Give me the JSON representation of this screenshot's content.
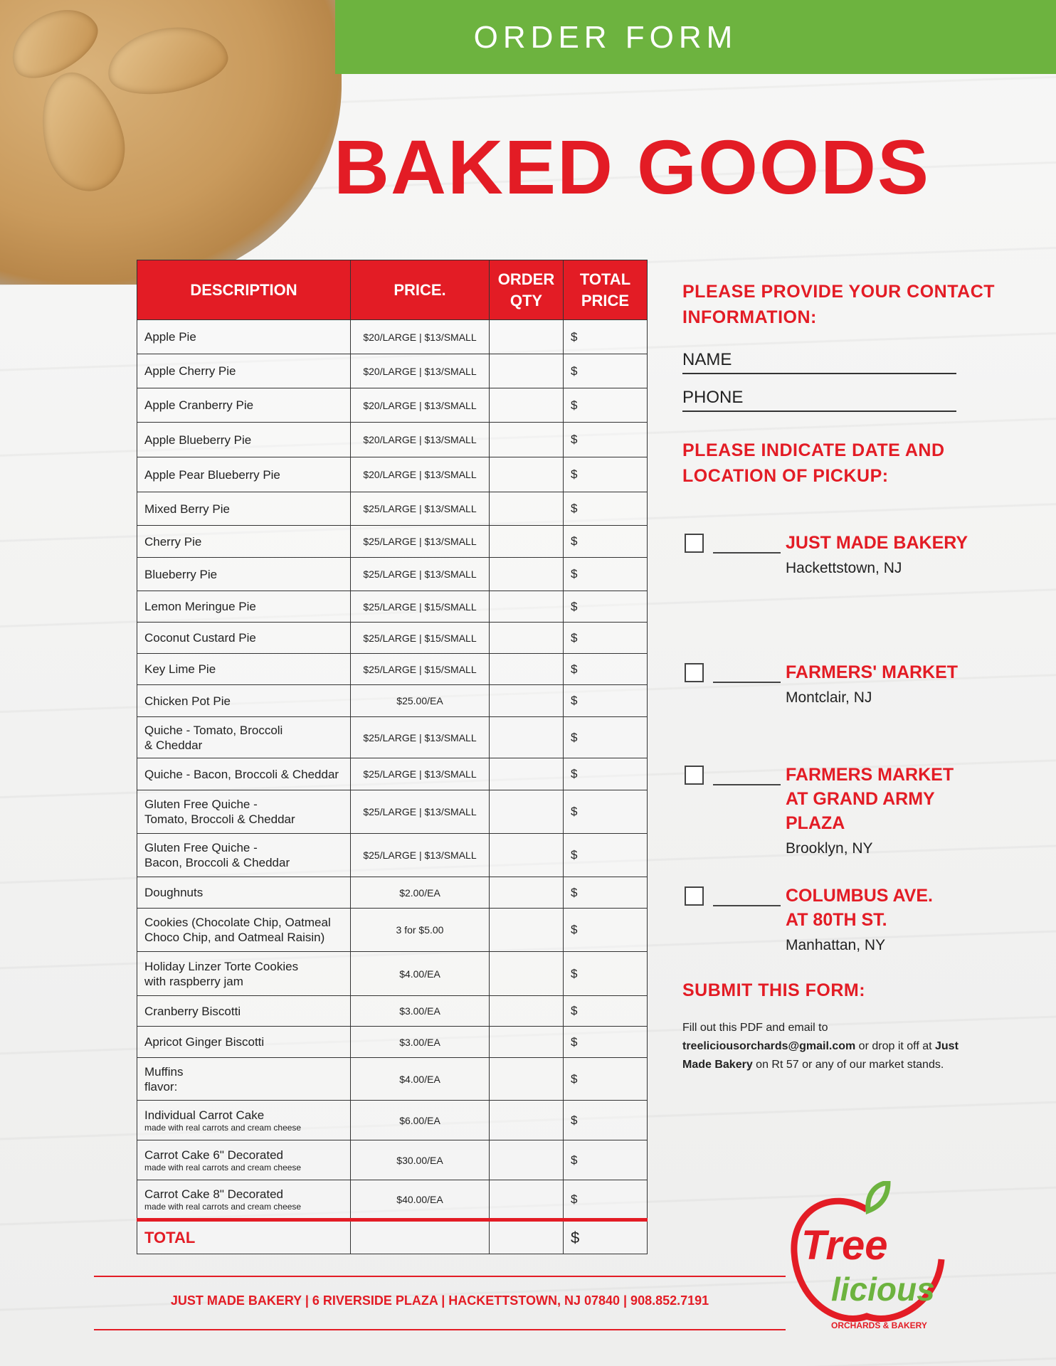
{
  "header": {
    "banner": "ORDER FORM",
    "title": "BAKED GOODS"
  },
  "colors": {
    "red": "#e31c25",
    "green": "#6db33f"
  },
  "table": {
    "columns": [
      "DESCRIPTION",
      "PRICE.",
      "ORDER QTY",
      "TOTAL PRICE"
    ],
    "rows": [
      {
        "desc": "Apple Pie",
        "price": "$20/LARGE | $13/SMALL",
        "total": "$"
      },
      {
        "desc": "Apple Cherry Pie",
        "price": "$20/LARGE | $13/SMALL",
        "total": "$"
      },
      {
        "desc": "Apple Cranberry Pie",
        "price": "$20/LARGE | $13/SMALL",
        "total": "$"
      },
      {
        "desc": "Apple Blueberry Pie",
        "price": "$20/LARGE | $13/SMALL",
        "total": "$"
      },
      {
        "desc": "Apple Pear Blueberry Pie",
        "price": "$20/LARGE | $13/SMALL",
        "total": "$"
      },
      {
        "desc": "Mixed Berry Pie",
        "price": "$25/LARGE | $13/SMALL",
        "total": "$"
      },
      {
        "desc": "Cherry Pie",
        "price": "$25/LARGE | $13/SMALL",
        "total": "$"
      },
      {
        "desc": "Blueberry Pie",
        "price": "$25/LARGE | $13/SMALL",
        "total": "$"
      },
      {
        "desc": "Lemon Meringue Pie",
        "price": "$25/LARGE | $15/SMALL",
        "total": "$"
      },
      {
        "desc": "Coconut Custard Pie",
        "price": "$25/LARGE | $15/SMALL",
        "total": "$"
      },
      {
        "desc": "Key Lime Pie",
        "price": "$25/LARGE | $15/SMALL",
        "total": "$"
      },
      {
        "desc": "Chicken Pot Pie",
        "price": "$25.00/EA",
        "total": "$"
      },
      {
        "desc": "Quiche - Tomato, Broccoli\n& Cheddar",
        "price": "$25/LARGE | $13/SMALL",
        "total": "$"
      },
      {
        "desc": "Quiche - Bacon, Broccoli & Cheddar",
        "price": "$25/LARGE | $13/SMALL",
        "total": "$"
      },
      {
        "desc": "Gluten Free Quiche -\nTomato, Broccoli & Cheddar",
        "price": "$25/LARGE | $13/SMALL",
        "total": "$"
      },
      {
        "desc": "Gluten Free Quiche -\nBacon, Broccoli & Cheddar",
        "price": "$25/LARGE | $13/SMALL",
        "total": "$"
      },
      {
        "desc": "Doughnuts",
        "price": "$2.00/EA",
        "total": "$"
      },
      {
        "desc": "Cookies (Chocolate Chip, Oatmeal\nChoco Chip, and Oatmeal Raisin)",
        "price": "3 for $5.00",
        "total": "$"
      },
      {
        "desc": "Holiday Linzer Torte Cookies\nwith raspberry jam",
        "price": "$4.00/EA",
        "total": "$"
      },
      {
        "desc": "Cranberry Biscotti",
        "price": "$3.00/EA",
        "total": "$"
      },
      {
        "desc": "Apricot Ginger Biscotti",
        "price": "$3.00/EA",
        "total": "$"
      },
      {
        "desc": "Muffins\nflavor:",
        "price": "$4.00/EA",
        "total": "$"
      },
      {
        "desc": "Individual Carrot Cake",
        "note": "made with real carrots and cream cheese",
        "price": "$6.00/EA",
        "total": "$"
      },
      {
        "desc": "Carrot Cake 6\" Decorated",
        "note": "made with real carrots and cream cheese",
        "price": "$30.00/EA",
        "total": "$"
      },
      {
        "desc": "Carrot Cake 8\" Decorated",
        "note": "made with real carrots and cream cheese",
        "price": "$40.00/EA",
        "total": "$"
      }
    ],
    "total_label": "TOTAL",
    "total_value": "$"
  },
  "contact": {
    "heading": "PLEASE PROVIDE YOUR CONTACT INFORMATION:",
    "name_label": "NAME",
    "phone_label": "PHONE"
  },
  "pickup": {
    "heading": "PLEASE INDICATE DATE AND LOCATION OF PICKUP:",
    "locations": [
      {
        "name": "JUST MADE BAKERY",
        "city": "Hackettstown, NJ"
      },
      {
        "name": "FARMERS' MARKET",
        "city": "Montclair, NJ"
      },
      {
        "name": "FARMERS MARKET AT GRAND ARMY PLAZA",
        "city": "Brooklyn, NY"
      },
      {
        "name": "COLUMBUS AVE. AT 80TH ST.",
        "city": "Manhattan, NY"
      }
    ]
  },
  "submit": {
    "heading": "SUBMIT THIS FORM:",
    "t1": "Fill out this PDF and email to ",
    "email": "treeliciousorchards@gmail.com",
    "t2": " or drop it off at ",
    "bakery": "Just Made Bakery",
    "t3": " on Rt 57 or any of our market stands."
  },
  "footer": {
    "text": "JUST MADE BAKERY | 6 RIVERSIDE PLAZA | HACKETTSTOWN, NJ 07840 | 908.852.7191"
  },
  "logo": {
    "word1": "Tree",
    "word2": "licious",
    "tagline": "ORCHARDS & BAKERY"
  }
}
